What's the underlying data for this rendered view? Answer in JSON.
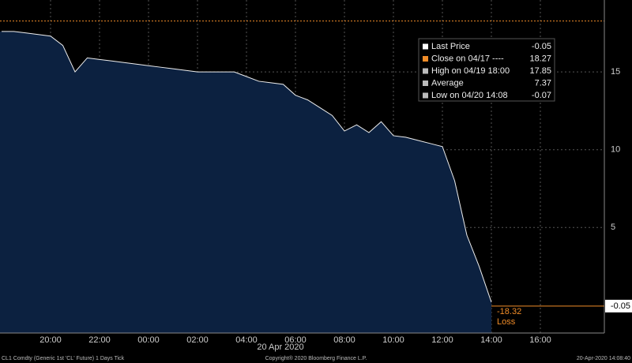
{
  "chart_data": {
    "type": "area",
    "categories": [
      null,
      null,
      null,
      null,
      "20:00",
      null,
      null,
      null,
      "22:00",
      null,
      null,
      null,
      "00:00",
      null,
      null,
      null,
      "02:00",
      null,
      null,
      null,
      "04:00",
      null,
      null,
      null,
      "06:00",
      null,
      null,
      null,
      "08:00",
      null,
      null,
      null,
      "10:00",
      null,
      null,
      null,
      "12:00",
      null,
      null,
      null,
      "14:00",
      null,
      null,
      null,
      "16:00",
      null,
      null,
      null,
      null,
      null
    ],
    "values": [
      17.6,
      17.6,
      17.5,
      17.4,
      17.3,
      16.7,
      15.0,
      15.9,
      15.8,
      15.7,
      15.6,
      15.5,
      15.4,
      15.3,
      15.2,
      15.1,
      15.0,
      15.0,
      15.0,
      15.0,
      14.7,
      14.4,
      14.3,
      14.2,
      13.5,
      13.2,
      12.7,
      12.2,
      11.2,
      11.6,
      11.1,
      11.8,
      10.9,
      10.8,
      10.6,
      10.4,
      10.2,
      8.0,
      4.5,
      2.5,
      0.2,
      null,
      null,
      null,
      null,
      null,
      null,
      null,
      null,
      null
    ],
    "color": "#0c2140",
    "ylim": [
      -1.78,
      19.62
    ],
    "yticks": [
      5,
      10,
      15
    ],
    "grid": true,
    "date_label": "20 Apr 2020",
    "legend": [
      {
        "label": "Last Price",
        "value": -0.05,
        "color": "#ffffff"
      },
      {
        "label": "Close on 04/17 ----",
        "value": 18.27,
        "color": "#f08c28"
      },
      {
        "label": "High on 04/19 18:00",
        "value": 17.85,
        "color": "#bbbbbb"
      },
      {
        "label": "Average",
        "value": 7.37,
        "color": "#bbbbbb"
      },
      {
        "label": "Low on 04/20 14:08",
        "value": -0.07,
        "color": "#bbbbbb"
      }
    ],
    "annotation": {
      "value": -18.32,
      "label": "Loss"
    },
    "footer": {
      "left": "CL1 Comdty (Generic 1st 'CL' Future) 1 Days  Tick",
      "center": "Copyright® 2020 Bloomberg Finance L.P.",
      "right": "20-Apr-2020 14:08:40"
    }
  }
}
